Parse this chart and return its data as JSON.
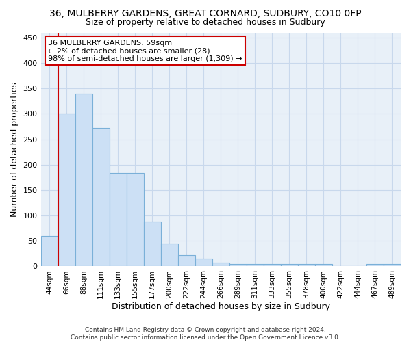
{
  "title_line1": "36, MULBERRY GARDENS, GREAT CORNARD, SUDBURY, CO10 0FP",
  "title_line2": "Size of property relative to detached houses in Sudbury",
  "xlabel": "Distribution of detached houses by size in Sudbury",
  "ylabel": "Number of detached properties",
  "footer_line1": "Contains HM Land Registry data © Crown copyright and database right 2024.",
  "footer_line2": "Contains public sector information licensed under the Open Government Licence v3.0.",
  "categories": [
    "44sqm",
    "66sqm",
    "88sqm",
    "111sqm",
    "133sqm",
    "155sqm",
    "177sqm",
    "200sqm",
    "222sqm",
    "244sqm",
    "266sqm",
    "289sqm",
    "311sqm",
    "333sqm",
    "355sqm",
    "378sqm",
    "400sqm",
    "422sqm",
    "444sqm",
    "467sqm",
    "489sqm"
  ],
  "values": [
    60,
    300,
    340,
    272,
    184,
    184,
    88,
    45,
    22,
    15,
    7,
    4,
    4,
    4,
    4,
    5,
    4,
    0,
    0,
    4,
    4
  ],
  "bar_color": "#cce0f5",
  "bar_edge_color": "#7ab0d8",
  "highlight_color": "#cc0000",
  "highlight_bar_idx": 1,
  "ylim": [
    0,
    460
  ],
  "yticks": [
    0,
    50,
    100,
    150,
    200,
    250,
    300,
    350,
    400,
    450
  ],
  "annotation_text": "36 MULBERRY GARDENS: 59sqm\n← 2% of detached houses are smaller (28)\n98% of semi-detached houses are larger (1,309) →",
  "annotation_box_facecolor": "#ffffff",
  "annotation_box_edgecolor": "#cc0000",
  "bg_color": "#ffffff",
  "plot_bg_color": "#e8f0f8",
  "grid_color": "#c8d8ec",
  "title1_fontsize": 10,
  "title2_fontsize": 9,
  "xlabel_fontsize": 9,
  "ylabel_fontsize": 9,
  "tick_fontsize": 8,
  "xtick_fontsize": 7.5,
  "annotation_fontsize": 8,
  "footer_fontsize": 6.5
}
